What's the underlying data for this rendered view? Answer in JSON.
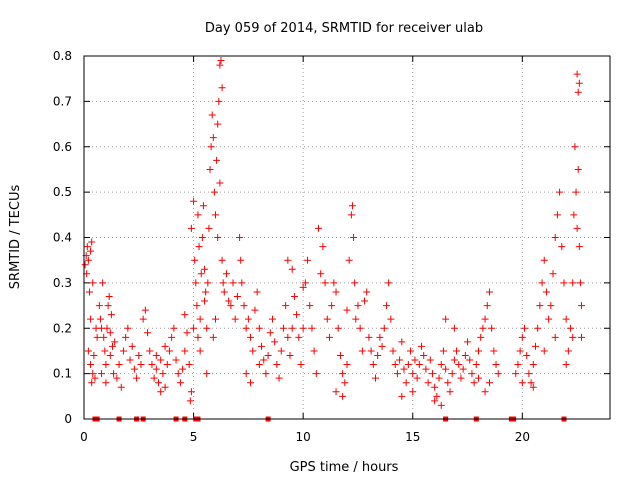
{
  "chart_data": {
    "type": "scatter",
    "title": "Day 059 of 2014, SRMTID for receiver ulab",
    "xlabel": "GPS time / hours",
    "ylabel": "SRMTID / TECUs",
    "xlim": [
      0,
      24
    ],
    "ylim": [
      0,
      0.8
    ],
    "xticks": [
      0,
      5,
      10,
      15,
      20
    ],
    "yticks": [
      0,
      0.1,
      0.2,
      0.3,
      0.4,
      0.5,
      0.6,
      0.7,
      0.8
    ],
    "xtick_labels": [
      "0",
      "5",
      "10",
      "15",
      "20"
    ],
    "ytick_labels": [
      "0",
      "0.1",
      "0.2",
      "0.3",
      "0.4",
      "0.5",
      "0.6",
      "0.7",
      "0.8"
    ],
    "grid": true,
    "marker": "+",
    "color": "#ff0000",
    "series": [
      {
        "name": "SRMTID",
        "points": [
          [
            0.05,
            0.34
          ],
          [
            0.1,
            0.36
          ],
          [
            0.12,
            0.32
          ],
          [
            0.15,
            0.38
          ],
          [
            0.2,
            0.35
          ],
          [
            0.25,
            0.28
          ],
          [
            0.3,
            0.37
          ],
          [
            0.35,
            0.39
          ],
          [
            0.4,
            0.3
          ],
          [
            0.2,
            0.15
          ],
          [
            0.3,
            0.12
          ],
          [
            0.35,
            0.08
          ],
          [
            0.4,
            0.1
          ],
          [
            0.45,
            0.14
          ],
          [
            0.5,
            0.09
          ],
          [
            0.55,
            0.2
          ],
          [
            0.6,
            0.18
          ],
          [
            0.3,
            0.22
          ],
          [
            0.7,
            0.25
          ],
          [
            0.75,
            0.22
          ],
          [
            0.8,
            0.2
          ],
          [
            0.85,
            0.3
          ],
          [
            0.9,
            0.18
          ],
          [
            0.95,
            0.15
          ],
          [
            1.0,
            0.12
          ],
          [
            1.05,
            0.2
          ],
          [
            1.1,
            0.25
          ],
          [
            1.15,
            0.27
          ],
          [
            1.2,
            0.19
          ],
          [
            1.25,
            0.23
          ],
          [
            1.3,
            0.16
          ],
          [
            1.35,
            0.1
          ],
          [
            1.0,
            0.08
          ],
          [
            0.8,
            0.1
          ],
          [
            1.2,
            0.14
          ],
          [
            1.4,
            0.17
          ],
          [
            1.5,
            0.09
          ],
          [
            1.6,
            0.12
          ],
          [
            1.7,
            0.07
          ],
          [
            1.8,
            0.15
          ],
          [
            1.9,
            0.18
          ],
          [
            2.0,
            0.2
          ],
          [
            2.1,
            0.13
          ],
          [
            2.2,
            0.16
          ],
          [
            2.3,
            0.11
          ],
          [
            2.4,
            0.09
          ],
          [
            2.5,
            0.14
          ],
          [
            2.6,
            0.12
          ],
          [
            2.7,
            0.22
          ],
          [
            2.8,
            0.24
          ],
          [
            2.9,
            0.19
          ],
          [
            3.0,
            0.15
          ],
          [
            3.1,
            0.12
          ],
          [
            3.2,
            0.09
          ],
          [
            3.3,
            0.11
          ],
          [
            3.4,
            0.08
          ],
          [
            3.5,
            0.13
          ],
          [
            3.6,
            0.1
          ],
          [
            3.7,
            0.07
          ],
          [
            3.8,
            0.12
          ],
          [
            3.9,
            0.15
          ],
          [
            4.0,
            0.18
          ],
          [
            3.3,
            0.14
          ],
          [
            3.5,
            0.06
          ],
          [
            3.7,
            0.16
          ],
          [
            4.1,
            0.2
          ],
          [
            4.2,
            0.13
          ],
          [
            4.3,
            0.1
          ],
          [
            4.4,
            0.08
          ],
          [
            4.5,
            0.11
          ],
          [
            4.6,
            0.15
          ],
          [
            4.7,
            0.19
          ],
          [
            4.8,
            0.12
          ],
          [
            4.9,
            0.06
          ],
          [
            4.85,
            0.04
          ],
          [
            4.6,
            0.23
          ],
          [
            4.9,
            0.42
          ],
          [
            5.0,
            0.48
          ],
          [
            5.05,
            0.35
          ],
          [
            5.1,
            0.3
          ],
          [
            5.15,
            0.25
          ],
          [
            5.2,
            0.45
          ],
          [
            5.25,
            0.38
          ],
          [
            5.3,
            0.22
          ],
          [
            5.35,
            0.32
          ],
          [
            5.4,
            0.4
          ],
          [
            5.45,
            0.47
          ],
          [
            5.5,
            0.33
          ],
          [
            5.55,
            0.28
          ],
          [
            5.6,
            0.2
          ],
          [
            5.65,
            0.3
          ],
          [
            5.7,
            0.42
          ],
          [
            5.75,
            0.55
          ],
          [
            5.8,
            0.6
          ],
          [
            5.85,
            0.67
          ],
          [
            5.9,
            0.62
          ],
          [
            5.95,
            0.5
          ],
          [
            6.0,
            0.45
          ],
          [
            6.05,
            0.57
          ],
          [
            6.1,
            0.65
          ],
          [
            6.15,
            0.7
          ],
          [
            6.2,
            0.78
          ],
          [
            6.25,
            0.79
          ],
          [
            6.3,
            0.73
          ],
          [
            6.2,
            0.52
          ],
          [
            6.1,
            0.4
          ],
          [
            6.3,
            0.35
          ],
          [
            6.35,
            0.3
          ],
          [
            6.4,
            0.28
          ],
          [
            6.5,
            0.32
          ],
          [
            6.6,
            0.26
          ],
          [
            6.7,
            0.25
          ],
          [
            6.8,
            0.3
          ],
          [
            6.9,
            0.22
          ],
          [
            7.0,
            0.27
          ],
          [
            7.1,
            0.4
          ],
          [
            7.15,
            0.35
          ],
          [
            5.3,
            0.15
          ],
          [
            5.6,
            0.1
          ],
          [
            5.9,
            0.18
          ],
          [
            6.0,
            0.22
          ],
          [
            5.5,
            0.26
          ],
          [
            5.0,
            0.2
          ],
          [
            5.2,
            0.18
          ],
          [
            7.2,
            0.3
          ],
          [
            7.3,
            0.25
          ],
          [
            7.4,
            0.2
          ],
          [
            7.5,
            0.22
          ],
          [
            7.6,
            0.18
          ],
          [
            7.7,
            0.15
          ],
          [
            7.8,
            0.24
          ],
          [
            7.9,
            0.28
          ],
          [
            8.0,
            0.2
          ],
          [
            8.1,
            0.16
          ],
          [
            8.2,
            0.13
          ],
          [
            8.3,
            0.1
          ],
          [
            8.4,
            0.14
          ],
          [
            8.5,
            0.19
          ],
          [
            8.6,
            0.22
          ],
          [
            8.7,
            0.17
          ],
          [
            8.8,
            0.12
          ],
          [
            8.9,
            0.09
          ],
          [
            9.0,
            0.15
          ],
          [
            9.1,
            0.2
          ],
          [
            9.2,
            0.25
          ],
          [
            9.3,
            0.18
          ],
          [
            9.4,
            0.14
          ],
          [
            9.5,
            0.2
          ],
          [
            9.6,
            0.27
          ],
          [
            9.7,
            0.23
          ],
          [
            9.8,
            0.18
          ],
          [
            9.9,
            0.12
          ],
          [
            10.0,
            0.2
          ],
          [
            10.1,
            0.3
          ],
          [
            10.2,
            0.35
          ],
          [
            10.3,
            0.25
          ],
          [
            7.4,
            0.1
          ],
          [
            7.6,
            0.08
          ],
          [
            8.0,
            0.12
          ],
          [
            9.3,
            0.35
          ],
          [
            9.5,
            0.33
          ],
          [
            10.0,
            0.29
          ],
          [
            10.4,
            0.2
          ],
          [
            10.5,
            0.15
          ],
          [
            10.6,
            0.1
          ],
          [
            10.7,
            0.42
          ],
          [
            10.8,
            0.32
          ],
          [
            10.9,
            0.38
          ],
          [
            11.0,
            0.3
          ],
          [
            11.1,
            0.22
          ],
          [
            11.2,
            0.18
          ],
          [
            11.3,
            0.25
          ],
          [
            11.4,
            0.3
          ],
          [
            11.5,
            0.28
          ],
          [
            11.6,
            0.2
          ],
          [
            11.7,
            0.14
          ],
          [
            11.8,
            0.1
          ],
          [
            11.9,
            0.08
          ],
          [
            12.0,
            0.24
          ],
          [
            12.1,
            0.35
          ],
          [
            12.2,
            0.45
          ],
          [
            12.25,
            0.47
          ],
          [
            12.3,
            0.4
          ],
          [
            12.35,
            0.3
          ],
          [
            12.4,
            0.22
          ],
          [
            12.5,
            0.25
          ],
          [
            12.6,
            0.2
          ],
          [
            12.7,
            0.15
          ],
          [
            12.8,
            0.26
          ],
          [
            12.9,
            0.28
          ],
          [
            13.0,
            0.18
          ],
          [
            11.5,
            0.06
          ],
          [
            11.8,
            0.05
          ],
          [
            12.0,
            0.12
          ],
          [
            13.1,
            0.15
          ],
          [
            13.2,
            0.12
          ],
          [
            13.3,
            0.09
          ],
          [
            13.4,
            0.14
          ],
          [
            13.5,
            0.18
          ],
          [
            13.6,
            0.16
          ],
          [
            13.7,
            0.2
          ],
          [
            13.8,
            0.25
          ],
          [
            13.9,
            0.3
          ],
          [
            14.0,
            0.22
          ],
          [
            14.1,
            0.15
          ],
          [
            14.2,
            0.12
          ],
          [
            14.3,
            0.1
          ],
          [
            14.4,
            0.13
          ],
          [
            14.5,
            0.17
          ],
          [
            14.6,
            0.11
          ],
          [
            14.7,
            0.08
          ],
          [
            14.8,
            0.12
          ],
          [
            14.9,
            0.15
          ],
          [
            15.0,
            0.1
          ],
          [
            15.1,
            0.13
          ],
          [
            15.2,
            0.09
          ],
          [
            15.3,
            0.12
          ],
          [
            15.4,
            0.16
          ],
          [
            15.5,
            0.14
          ],
          [
            15.6,
            0.11
          ],
          [
            15.7,
            0.08
          ],
          [
            15.8,
            0.13
          ],
          [
            15.9,
            0.1
          ],
          [
            16.0,
            0.07
          ],
          [
            16.1,
            0.05
          ],
          [
            16.2,
            0.09
          ],
          [
            16.3,
            0.12
          ],
          [
            16.4,
            0.15
          ],
          [
            16.5,
            0.11
          ],
          [
            16.6,
            0.08
          ],
          [
            16.7,
            0.06
          ],
          [
            16.8,
            0.1
          ],
          [
            16.9,
            0.13
          ],
          [
            17.0,
            0.15
          ],
          [
            17.1,
            0.12
          ],
          [
            17.2,
            0.09
          ],
          [
            17.3,
            0.11
          ],
          [
            17.4,
            0.14
          ],
          [
            17.5,
            0.17
          ],
          [
            17.6,
            0.13
          ],
          [
            17.7,
            0.1
          ],
          [
            17.8,
            0.08
          ],
          [
            16.0,
            0.04
          ],
          [
            16.3,
            0.03
          ],
          [
            15.0,
            0.06
          ],
          [
            14.5,
            0.05
          ],
          [
            16.9,
            0.2
          ],
          [
            16.5,
            0.22
          ],
          [
            17.9,
            0.12
          ],
          [
            18.0,
            0.15
          ],
          [
            18.1,
            0.18
          ],
          [
            18.2,
            0.2
          ],
          [
            18.3,
            0.22
          ],
          [
            18.4,
            0.25
          ],
          [
            18.5,
            0.28
          ],
          [
            18.6,
            0.2
          ],
          [
            18.7,
            0.15
          ],
          [
            18.8,
            0.12
          ],
          [
            18.9,
            0.1
          ],
          [
            18.5,
            0.08
          ],
          [
            18.3,
            0.06
          ],
          [
            18.0,
            0.09
          ],
          [
            19.7,
            0.1
          ],
          [
            19.8,
            0.12
          ],
          [
            19.9,
            0.15
          ],
          [
            20.0,
            0.18
          ],
          [
            20.1,
            0.2
          ],
          [
            20.2,
            0.14
          ],
          [
            20.3,
            0.1
          ],
          [
            20.4,
            0.08
          ],
          [
            20.5,
            0.12
          ],
          [
            20.6,
            0.16
          ],
          [
            20.7,
            0.2
          ],
          [
            20.8,
            0.25
          ],
          [
            20.9,
            0.3
          ],
          [
            21.0,
            0.35
          ],
          [
            21.1,
            0.28
          ],
          [
            21.2,
            0.22
          ],
          [
            21.3,
            0.25
          ],
          [
            21.4,
            0.32
          ],
          [
            21.5,
            0.4
          ],
          [
            21.6,
            0.45
          ],
          [
            21.7,
            0.5
          ],
          [
            21.8,
            0.38
          ],
          [
            21.9,
            0.3
          ],
          [
            22.0,
            0.22
          ],
          [
            22.1,
            0.15
          ],
          [
            22.2,
            0.2
          ],
          [
            22.3,
            0.3
          ],
          [
            22.35,
            0.45
          ],
          [
            22.4,
            0.6
          ],
          [
            22.45,
            0.5
          ],
          [
            22.5,
            0.42
          ],
          [
            22.55,
            0.55
          ],
          [
            22.6,
            0.38
          ],
          [
            22.65,
            0.3
          ],
          [
            22.7,
            0.25
          ],
          [
            22.5,
            0.76
          ],
          [
            22.55,
            0.72
          ],
          [
            22.6,
            0.74
          ],
          [
            20.0,
            0.08
          ],
          [
            20.5,
            0.07
          ],
          [
            21.0,
            0.15
          ],
          [
            21.5,
            0.18
          ],
          [
            22.0,
            0.12
          ],
          [
            22.3,
            0.18
          ],
          [
            22.7,
            0.18
          ]
        ]
      }
    ],
    "zero_markers_x": [
      0.5,
      0.6,
      1.6,
      2.4,
      2.7,
      4.2,
      4.6,
      5.1,
      5.2,
      8.4,
      16.5,
      17.9,
      19.5,
      19.6,
      21.9
    ]
  }
}
